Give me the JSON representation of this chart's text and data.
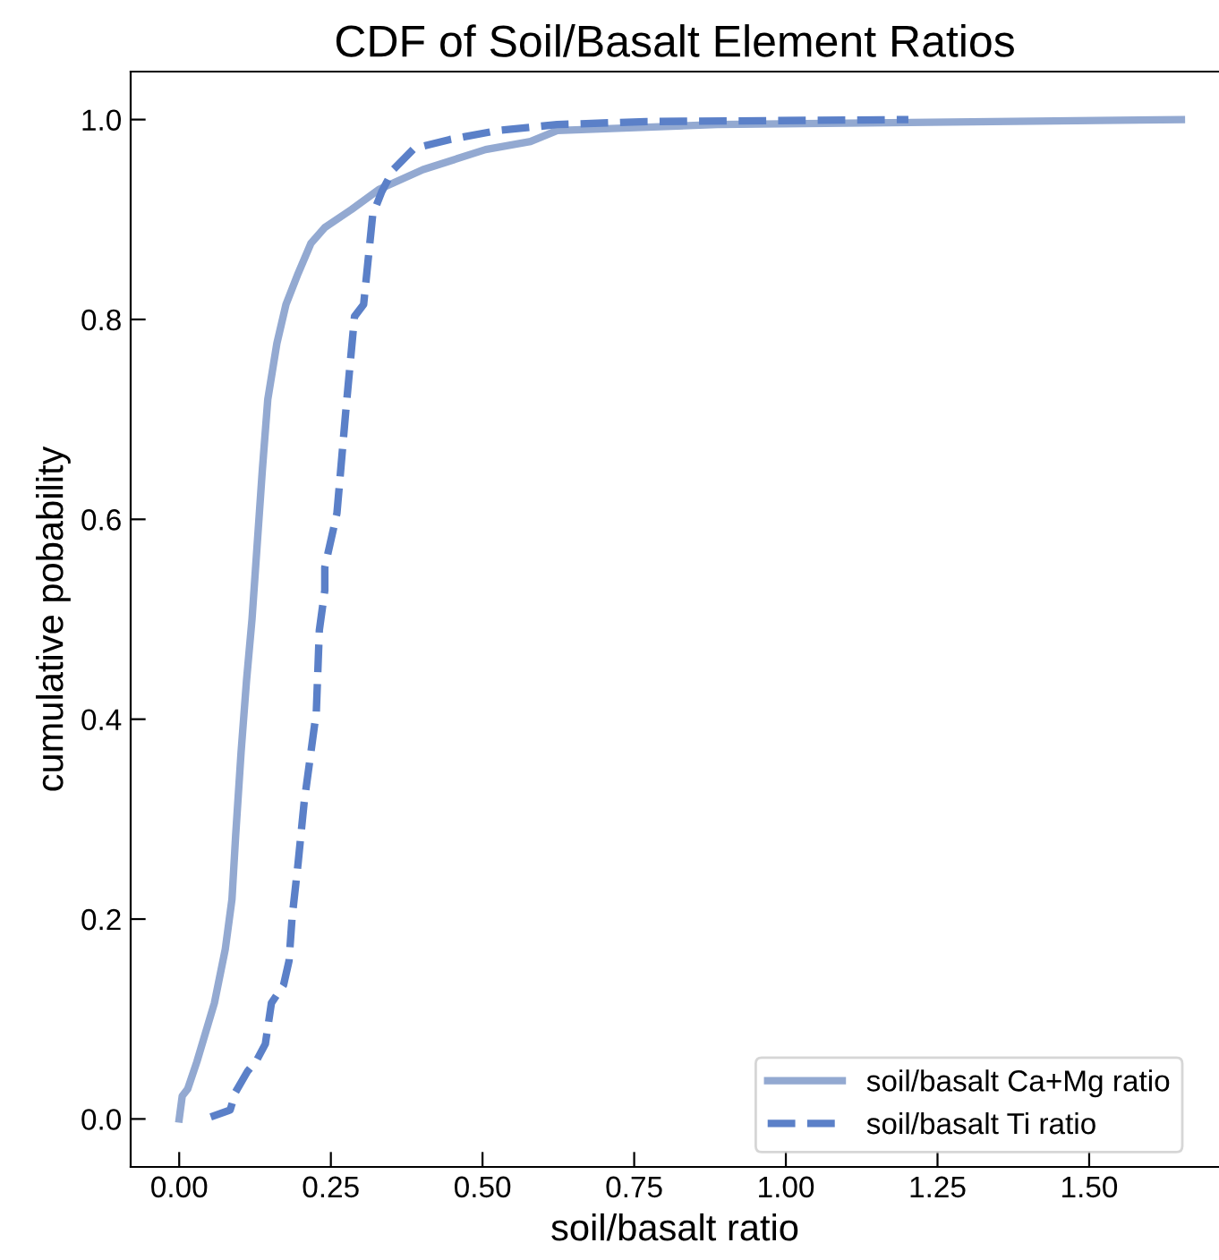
{
  "chart_data": {
    "type": "line",
    "title": "CDF of Soil/Basalt Element Ratios",
    "xlabel": "soil/basalt ratio",
    "ylabel": "cumulative pobability",
    "xlim": [
      -0.08,
      1.714
    ],
    "ylim": [
      -0.048,
      1.048
    ],
    "xticks": [
      {
        "value": 0,
        "label": "0.00"
      },
      {
        "value": 0.25,
        "label": "0.25"
      },
      {
        "value": 0.5,
        "label": "0.50"
      },
      {
        "value": 0.75,
        "label": "0.75"
      },
      {
        "value": 1,
        "label": "1.00"
      },
      {
        "value": 1.25,
        "label": "1.25"
      },
      {
        "value": 1.5,
        "label": "1.50"
      }
    ],
    "yticks": [
      {
        "value": 0,
        "label": "0.0"
      },
      {
        "value": 0.2,
        "label": "0.2"
      },
      {
        "value": 0.4,
        "label": "0.4"
      },
      {
        "value": 0.6,
        "label": "0.6"
      },
      {
        "value": 0.8,
        "label": "0.8"
      },
      {
        "value": 1,
        "label": "1.0"
      }
    ],
    "legend": "bottom right",
    "grid": false,
    "series": [
      {
        "name": "soil/basalt Ca+Mg ratio",
        "color": "#93a9d1",
        "line_style": "solid",
        "x": [
          0,
          0.005,
          0.014,
          0.029,
          0.058,
          0.076,
          0.087,
          0.093,
          0.102,
          0.111,
          0.12,
          0.137,
          0.146,
          0.161,
          0.176,
          0.196,
          0.217,
          0.24,
          0.284,
          0.329,
          0.402,
          0.505,
          0.579,
          0.623,
          0.887,
          1.652
        ],
        "values": [
          0,
          0.023,
          0.03,
          0.057,
          0.116,
          0.17,
          0.22,
          0.283,
          0.367,
          0.439,
          0.5,
          0.649,
          0.72,
          0.776,
          0.815,
          0.846,
          0.876,
          0.892,
          0.91,
          0.93,
          0.95,
          0.97,
          0.978,
          0.989,
          0.995,
          1.0
        ]
      },
      {
        "name": "soil/basalt Ti ratio",
        "color": "#5b80c8",
        "line_style": "dashed",
        "x": [
          0.052,
          0.084,
          0.093,
          0.113,
          0.128,
          0.142,
          0.152,
          0.172,
          0.181,
          0.186,
          0.196,
          0.206,
          0.216,
          0.226,
          0.231,
          0.24,
          0.24,
          0.26,
          0.275,
          0.289,
          0.304,
          0.319,
          0.334,
          0.353,
          0.387,
          0.446,
          0.525,
          0.623,
          0.77,
          1.202
        ],
        "values": [
          0.002,
          0.009,
          0.027,
          0.048,
          0.059,
          0.075,
          0.116,
          0.134,
          0.158,
          0.201,
          0.256,
          0.317,
          0.362,
          0.407,
          0.489,
          0.529,
          0.552,
          0.606,
          0.711,
          0.803,
          0.815,
          0.905,
          0.928,
          0.95,
          0.971,
          0.98,
          0.989,
          0.995,
          0.998,
          1.0
        ]
      }
    ]
  }
}
